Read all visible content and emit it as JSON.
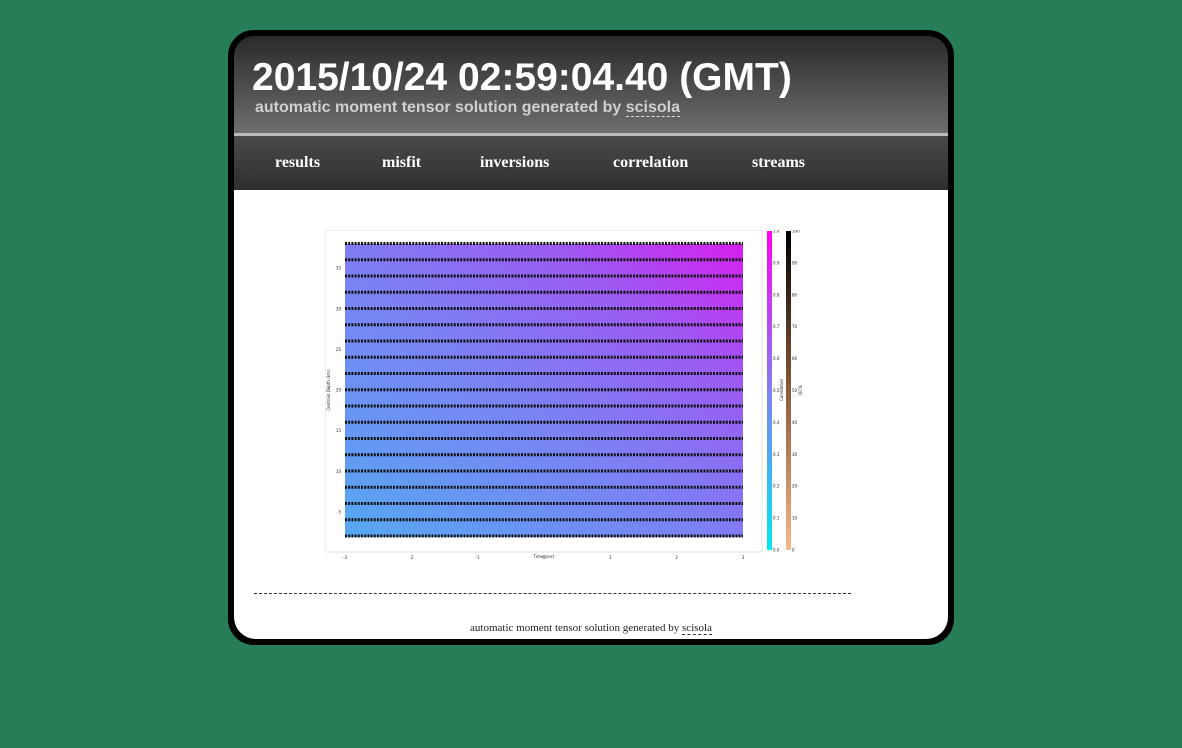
{
  "header": {
    "title": "2015/10/24 02:59:04.40 (GMT)",
    "subtitle": "automatic moment tensor solution generated by",
    "subtitle_link": "scisola"
  },
  "nav": [
    "results",
    "misfit",
    "inversions",
    "correlation",
    "streams"
  ],
  "figure": {
    "x_label": "Time (sec)",
    "y_label": "Centroid Depth (km)",
    "xticks": [
      -3,
      -2,
      -1,
      0,
      1,
      2,
      3
    ],
    "yticks": [
      5,
      10,
      15,
      20,
      25,
      30,
      35
    ],
    "colorbar_correlation": {
      "label": "Correlation",
      "ticks": [
        "0.0",
        "0.1",
        "0.2",
        "0.3",
        "0.4",
        "0.5",
        "0.6",
        "0.7",
        "0.8",
        "0.9",
        "1.0"
      ]
    },
    "colorbar_dc": {
      "label": "DC%",
      "ticks": [
        "0",
        "10",
        "20",
        "30",
        "40",
        "50",
        "60",
        "70",
        "80",
        "90",
        "100"
      ]
    }
  },
  "footer": {
    "text": "automatic moment tensor solution generated by",
    "link": "scisola"
  }
}
